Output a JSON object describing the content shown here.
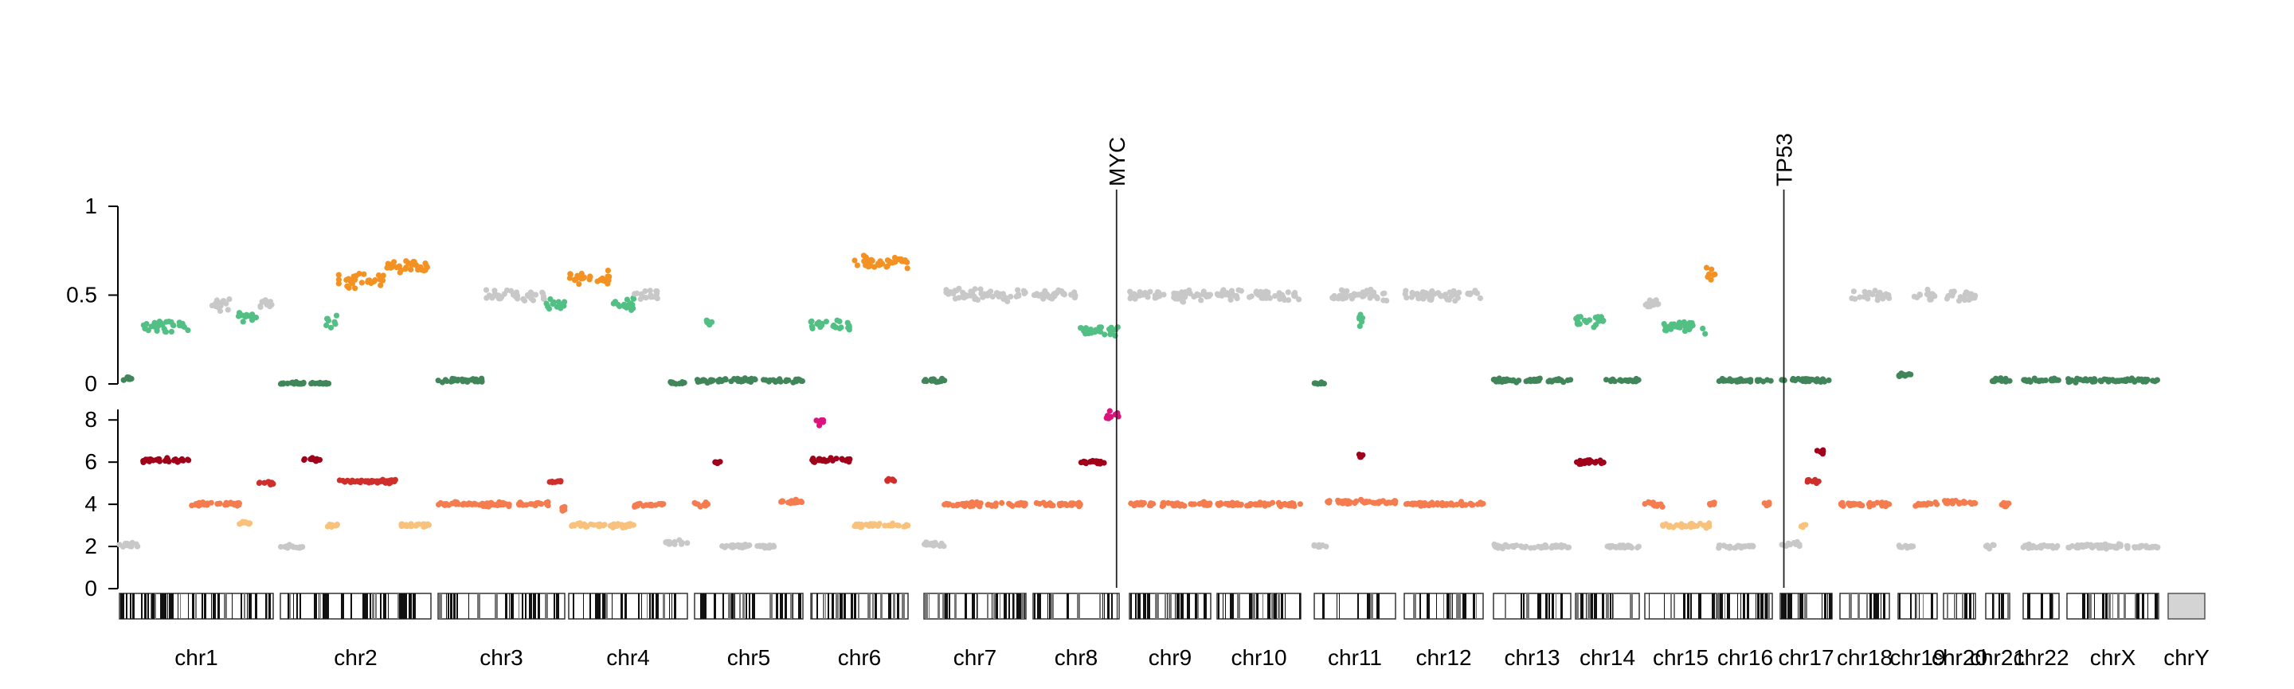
{
  "chart_data": {
    "type": "scatter",
    "genes": [
      {
        "label": "MYC",
        "chrom": "chr8",
        "pos": 0.97
      },
      {
        "label": "TP53",
        "chrom": "chr17",
        "pos": 0.07
      }
    ],
    "chromosomes": [
      {
        "name": "chr1",
        "baf": [
          {
            "v": 0.03,
            "c": "low",
            "from": 0.0,
            "to": 0.08
          },
          {
            "v": 0.32,
            "c": "mid",
            "from": 0.15,
            "to": 0.45
          },
          {
            "v": 0.45,
            "c": "gray",
            "from": 0.6,
            "to": 0.75
          },
          {
            "v": 0.38,
            "c": "mid",
            "from": 0.77,
            "to": 0.9
          },
          {
            "v": 0.45,
            "c": "gray",
            "from": 0.9,
            "to": 1.0
          }
        ],
        "cn": [
          {
            "v": 2.1,
            "c": "gray",
            "from": 0.0,
            "to": 0.12
          },
          {
            "v": 6.1,
            "c": "dark",
            "from": 0.15,
            "to": 0.45
          },
          {
            "v": 4.0,
            "c": "amp",
            "from": 0.47,
            "to": 0.6
          },
          {
            "v": 4.0,
            "c": "amp",
            "from": 0.62,
            "to": 0.78
          },
          {
            "v": 3.1,
            "c": "gain",
            "from": 0.78,
            "to": 0.88
          },
          {
            "v": 5.0,
            "c": "red",
            "from": 0.9,
            "to": 1.0
          }
        ]
      },
      {
        "name": "chr2",
        "baf": [
          {
            "v": 0.0,
            "c": "low",
            "from": 0.0,
            "to": 0.33
          },
          {
            "v": 0.35,
            "c": "mid",
            "from": 0.3,
            "to": 0.38
          },
          {
            "v": 0.58,
            "c": "orange",
            "from": 0.38,
            "to": 0.7
          },
          {
            "v": 0.66,
            "c": "orange",
            "from": 0.7,
            "to": 1.0
          }
        ],
        "cn": [
          {
            "v": 2.0,
            "c": "gray",
            "from": 0.0,
            "to": 0.15
          },
          {
            "v": 6.1,
            "c": "dark",
            "from": 0.15,
            "to": 0.27
          },
          {
            "v": 3.0,
            "c": "gain",
            "from": 0.3,
            "to": 0.38
          },
          {
            "v": 5.1,
            "c": "red",
            "from": 0.38,
            "to": 0.78
          },
          {
            "v": 3.0,
            "c": "gain",
            "from": 0.8,
            "to": 1.0
          }
        ]
      },
      {
        "name": "chr3",
        "baf": [
          {
            "v": 0.02,
            "c": "low",
            "from": 0.0,
            "to": 0.35
          },
          {
            "v": 0.5,
            "c": "gray",
            "from": 0.38,
            "to": 0.85
          },
          {
            "v": 0.45,
            "c": "mid",
            "from": 0.85,
            "to": 1.0
          }
        ],
        "cn": [
          {
            "v": 4.0,
            "c": "amp",
            "from": 0.0,
            "to": 0.88
          },
          {
            "v": 5.1,
            "c": "red",
            "from": 0.88,
            "to": 0.98
          },
          {
            "v": 3.8,
            "c": "amp",
            "from": 0.98,
            "to": 1.0
          }
        ]
      },
      {
        "name": "chr4",
        "baf": [
          {
            "v": 0.6,
            "c": "orange",
            "from": 0.0,
            "to": 0.35
          },
          {
            "v": 0.45,
            "c": "mid",
            "from": 0.35,
            "to": 0.55
          },
          {
            "v": 0.5,
            "c": "gray",
            "from": 0.55,
            "to": 0.75
          },
          {
            "v": 0.0,
            "c": "low",
            "from": 0.85,
            "to": 1.0
          }
        ],
        "cn": [
          {
            "v": 3.0,
            "c": "gain",
            "from": 0.0,
            "to": 0.55
          },
          {
            "v": 4.0,
            "c": "amp",
            "from": 0.55,
            "to": 0.8
          },
          {
            "v": 2.2,
            "c": "gray",
            "from": 0.8,
            "to": 1.0
          }
        ]
      },
      {
        "name": "chr5",
        "baf": [
          {
            "v": 0.02,
            "c": "low",
            "from": 0.0,
            "to": 1.0
          },
          {
            "v": 0.35,
            "c": "mid",
            "from": 0.1,
            "to": 0.16
          }
        ],
        "cn": [
          {
            "v": 4.0,
            "c": "amp",
            "from": 0.0,
            "to": 0.15
          },
          {
            "v": 6.0,
            "c": "dark",
            "from": 0.18,
            "to": 0.24
          },
          {
            "v": 2.0,
            "c": "gray",
            "from": 0.25,
            "to": 0.75
          },
          {
            "v": 4.1,
            "c": "amp",
            "from": 0.75,
            "to": 1.0
          }
        ]
      },
      {
        "name": "chr6",
        "baf": [
          {
            "v": 0.33,
            "c": "mid",
            "from": 0.0,
            "to": 0.4
          },
          {
            "v": 0.68,
            "c": "orange",
            "from": 0.45,
            "to": 1.0
          }
        ],
        "cn": [
          {
            "v": 6.1,
            "c": "dark",
            "from": 0.0,
            "to": 0.4
          },
          {
            "v": 8.0,
            "c": "pink",
            "from": 0.05,
            "to": 0.15
          },
          {
            "v": 3.0,
            "c": "gain",
            "from": 0.45,
            "to": 0.85
          },
          {
            "v": 5.1,
            "c": "red",
            "from": 0.78,
            "to": 0.88
          },
          {
            "v": 3.0,
            "c": "gain",
            "from": 0.88,
            "to": 1.0
          }
        ]
      },
      {
        "name": "chr7",
        "baf": [
          {
            "v": 0.5,
            "c": "gray",
            "from": 0.2,
            "to": 1.0
          },
          {
            "v": 0.02,
            "c": "low",
            "from": 0.0,
            "to": 0.2
          }
        ],
        "cn": [
          {
            "v": 2.1,
            "c": "gray",
            "from": 0.0,
            "to": 0.2
          },
          {
            "v": 4.0,
            "c": "amp",
            "from": 0.2,
            "to": 1.0
          }
        ]
      },
      {
        "name": "chr8",
        "baf": [
          {
            "v": 0.5,
            "c": "gray",
            "from": 0.0,
            "to": 0.55
          },
          {
            "v": 0.3,
            "c": "mid",
            "from": 0.55,
            "to": 1.0
          }
        ],
        "cn": [
          {
            "v": 4.0,
            "c": "amp",
            "from": 0.0,
            "to": 0.55
          },
          {
            "v": 6.0,
            "c": "dark",
            "from": 0.55,
            "to": 0.85
          },
          {
            "v": 8.2,
            "c": "pink",
            "from": 0.85,
            "to": 1.0
          }
        ]
      },
      {
        "name": "chr9",
        "baf": [
          {
            "v": 0.5,
            "c": "gray",
            "from": 0.0,
            "to": 1.0
          }
        ],
        "cn": [
          {
            "v": 4.0,
            "c": "amp",
            "from": 0.0,
            "to": 0.3
          },
          {
            "v": 4.0,
            "c": "amp",
            "from": 0.4,
            "to": 1.0
          }
        ]
      },
      {
        "name": "chr10",
        "baf": [
          {
            "v": 0.5,
            "c": "gray",
            "from": 0.0,
            "to": 1.0
          }
        ],
        "cn": [
          {
            "v": 4.0,
            "c": "amp",
            "from": 0.0,
            "to": 1.0
          }
        ]
      },
      {
        "name": "chr11",
        "baf": [
          {
            "v": 0.0,
            "c": "low",
            "from": 0.0,
            "to": 0.15
          },
          {
            "v": 0.5,
            "c": "gray",
            "from": 0.2,
            "to": 1.0
          },
          {
            "v": 0.35,
            "c": "mid",
            "from": 0.55,
            "to": 0.6
          }
        ],
        "cn": [
          {
            "v": 2.0,
            "c": "gray",
            "from": 0.0,
            "to": 0.15
          },
          {
            "v": 4.1,
            "c": "amp",
            "from": 0.15,
            "to": 1.0
          },
          {
            "v": 6.3,
            "c": "dark",
            "from": 0.55,
            "to": 0.6
          }
        ]
      },
      {
        "name": "chr12",
        "baf": [
          {
            "v": 0.5,
            "c": "gray",
            "from": 0.0,
            "to": 1.0
          }
        ],
        "cn": [
          {
            "v": 4.0,
            "c": "amp",
            "from": 0.0,
            "to": 1.0
          }
        ]
      },
      {
        "name": "chr13",
        "baf": [
          {
            "v": 0.02,
            "c": "low",
            "from": 0.0,
            "to": 1.0
          }
        ],
        "cn": [
          {
            "v": 2.0,
            "c": "gray",
            "from": 0.0,
            "to": 1.0
          }
        ]
      },
      {
        "name": "chr14",
        "baf": [
          {
            "v": 0.35,
            "c": "mid",
            "from": 0.0,
            "to": 0.45
          },
          {
            "v": 0.02,
            "c": "low",
            "from": 0.45,
            "to": 1.0
          }
        ],
        "cn": [
          {
            "v": 6.0,
            "c": "dark",
            "from": 0.0,
            "to": 0.45
          },
          {
            "v": 2.0,
            "c": "gray",
            "from": 0.5,
            "to": 1.0
          }
        ]
      },
      {
        "name": "chr15",
        "baf": [
          {
            "v": 0.45,
            "c": "gray",
            "from": 0.0,
            "to": 0.25
          },
          {
            "v": 0.32,
            "c": "mid",
            "from": 0.25,
            "to": 0.85
          },
          {
            "v": 0.62,
            "c": "orange",
            "from": 0.85,
            "to": 1.0
          }
        ],
        "cn": [
          {
            "v": 4.0,
            "c": "amp",
            "from": 0.0,
            "to": 0.25
          },
          {
            "v": 3.0,
            "c": "gain",
            "from": 0.25,
            "to": 0.9
          },
          {
            "v": 4.0,
            "c": "amp",
            "from": 0.9,
            "to": 1.0
          }
        ]
      },
      {
        "name": "chr16",
        "baf": [
          {
            "v": 0.02,
            "c": "low",
            "from": 0.0,
            "to": 1.0
          }
        ],
        "cn": [
          {
            "v": 2.0,
            "c": "gray",
            "from": 0.0,
            "to": 0.7
          },
          {
            "v": 4.0,
            "c": "amp",
            "from": 0.85,
            "to": 1.0
          }
        ]
      },
      {
        "name": "chr17",
        "baf": [
          {
            "v": 0.02,
            "c": "low",
            "from": 0.0,
            "to": 1.0
          }
        ],
        "cn": [
          {
            "v": 2.1,
            "c": "gray",
            "from": 0.0,
            "to": 0.4
          },
          {
            "v": 3.0,
            "c": "gain",
            "from": 0.4,
            "to": 0.5
          },
          {
            "v": 5.1,
            "c": "red",
            "from": 0.5,
            "to": 0.75
          },
          {
            "v": 6.5,
            "c": "dark",
            "from": 0.7,
            "to": 0.85
          }
        ]
      },
      {
        "name": "chr18",
        "baf": [
          {
            "v": 0.5,
            "c": "gray",
            "from": 0.2,
            "to": 1.0
          }
        ],
        "cn": [
          {
            "v": 4.0,
            "c": "amp",
            "from": 0.0,
            "to": 1.0
          }
        ]
      },
      {
        "name": "chr19",
        "baf": [
          {
            "v": 0.05,
            "c": "low",
            "from": 0.0,
            "to": 0.4
          },
          {
            "v": 0.5,
            "c": "gray",
            "from": 0.4,
            "to": 1.0
          }
        ],
        "cn": [
          {
            "v": 2.0,
            "c": "gray",
            "from": 0.0,
            "to": 0.4
          },
          {
            "v": 4.0,
            "c": "amp",
            "from": 0.4,
            "to": 1.0
          }
        ]
      },
      {
        "name": "chr20",
        "baf": [
          {
            "v": 0.5,
            "c": "gray",
            "from": 0.0,
            "to": 1.0
          }
        ],
        "cn": [
          {
            "v": 4.1,
            "c": "amp",
            "from": 0.0,
            "to": 1.0
          }
        ]
      },
      {
        "name": "chr21",
        "baf": [
          {
            "v": 0.02,
            "c": "low",
            "from": 0.2,
            "to": 1.0
          }
        ],
        "cn": [
          {
            "v": 2.0,
            "c": "gray",
            "from": 0.0,
            "to": 0.4
          },
          {
            "v": 4.0,
            "c": "amp",
            "from": 0.5,
            "to": 1.0
          }
        ]
      },
      {
        "name": "chr22",
        "baf": [
          {
            "v": 0.02,
            "c": "low",
            "from": 0.0,
            "to": 1.0
          }
        ],
        "cn": [
          {
            "v": 2.0,
            "c": "gray",
            "from": 0.0,
            "to": 1.0
          }
        ]
      },
      {
        "name": "chrX",
        "baf": [
          {
            "v": 0.02,
            "c": "low",
            "from": 0.0,
            "to": 1.0
          }
        ],
        "cn": [
          {
            "v": 2.0,
            "c": "gray",
            "from": 0.0,
            "to": 1.0
          }
        ]
      },
      {
        "name": "chrY",
        "baf": [],
        "cn": []
      }
    ],
    "baf_axis": {
      "ticks": [
        0,
        0.5,
        1
      ],
      "labels": [
        "0",
        "0.5",
        "1"
      ],
      "ylim": [
        0,
        1
      ]
    },
    "cn_axis": {
      "ticks": [
        0,
        2,
        4,
        6,
        8
      ],
      "labels": [
        "0",
        "2",
        "4",
        "6",
        "8"
      ],
      "ylim": [
        0,
        8.5
      ]
    },
    "colors": {
      "low": "#41865a",
      "mid": "#52c084",
      "gray": "#c8c8c8",
      "orange": "#f39223",
      "gain": "#f9c27c",
      "amp": "#f47c4e",
      "red": "#cf2e2a",
      "dark": "#a0001a",
      "pink": "#dc137c",
      "axis": "#000000"
    }
  }
}
